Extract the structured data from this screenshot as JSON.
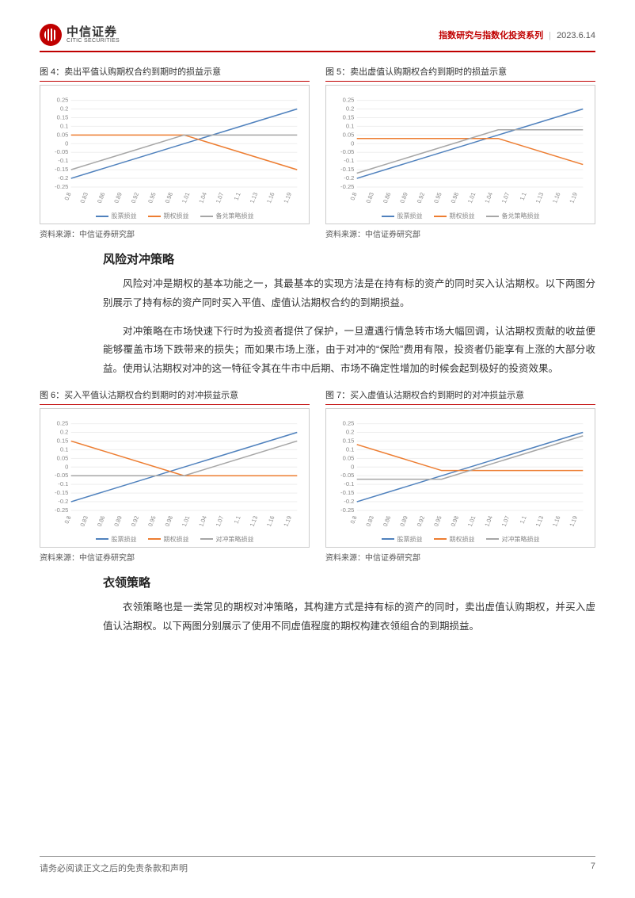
{
  "header": {
    "logo_cn": "中信证券",
    "logo_en": "CITIC SECURITIES",
    "series": "指数研究与指数化投资系列",
    "date": "2023.6.14"
  },
  "charts": {
    "fig4": {
      "title": "图 4：卖出平值认购期权合约到期时的损益示意",
      "source": "资料来源：中信证券研究部",
      "type": "line",
      "xlim": [
        0.8,
        1.2
      ],
      "ylim": [
        -0.25,
        0.28
      ],
      "yticks": [
        -0.25,
        -0.2,
        -0.15,
        -0.1,
        -0.05,
        0,
        0.05,
        0.1,
        0.15,
        0.2,
        0.25
      ],
      "xticks": [
        0.8,
        0.83,
        0.86,
        0.89,
        0.92,
        0.95,
        0.98,
        1.01,
        1.04,
        1.07,
        1.1,
        1.13,
        1.16,
        1.19
      ],
      "background_color": "#ffffff",
      "grid_color": "#eeeeee",
      "series": [
        {
          "name": "股票损益",
          "color": "#4f81bd",
          "points": [
            [
              0.8,
              -0.2
            ],
            [
              1.2,
              0.2
            ]
          ]
        },
        {
          "name": "期权损益",
          "color": "#ed7d31",
          "points": [
            [
              0.8,
              0.05
            ],
            [
              1.0,
              0.05
            ],
            [
              1.2,
              -0.15
            ]
          ]
        },
        {
          "name": "备兑策略损益",
          "color": "#a6a6a6",
          "points": [
            [
              0.8,
              -0.15
            ],
            [
              1.0,
              0.05
            ],
            [
              1.2,
              0.05
            ]
          ]
        }
      ]
    },
    "fig5": {
      "title": "图 5：卖出虚值认购期权合约到期时的损益示意",
      "source": "资料来源：中信证券研究部",
      "type": "line",
      "xlim": [
        0.8,
        1.2
      ],
      "ylim": [
        -0.25,
        0.28
      ],
      "yticks": [
        -0.25,
        -0.2,
        -0.15,
        -0.1,
        -0.05,
        0,
        0.05,
        0.1,
        0.15,
        0.2,
        0.25
      ],
      "xticks": [
        0.8,
        0.83,
        0.86,
        0.89,
        0.92,
        0.95,
        0.98,
        1.01,
        1.04,
        1.07,
        1.1,
        1.13,
        1.16,
        1.19
      ],
      "background_color": "#ffffff",
      "grid_color": "#eeeeee",
      "series": [
        {
          "name": "股票损益",
          "color": "#4f81bd",
          "points": [
            [
              0.8,
              -0.2
            ],
            [
              1.2,
              0.2
            ]
          ]
        },
        {
          "name": "期权损益",
          "color": "#ed7d31",
          "points": [
            [
              0.8,
              0.03
            ],
            [
              1.05,
              0.03
            ],
            [
              1.2,
              -0.12
            ]
          ]
        },
        {
          "name": "备兑策略损益",
          "color": "#a6a6a6",
          "points": [
            [
              0.8,
              -0.17
            ],
            [
              1.05,
              0.08
            ],
            [
              1.2,
              0.08
            ]
          ]
        }
      ]
    },
    "fig6": {
      "title": "图 6：买入平值认沽期权合约到期时的对冲损益示意",
      "source": "资料来源：中信证券研究部",
      "type": "line",
      "xlim": [
        0.8,
        1.2
      ],
      "ylim": [
        -0.25,
        0.28
      ],
      "yticks": [
        -0.25,
        -0.2,
        -0.15,
        -0.1,
        -0.05,
        0,
        0.05,
        0.1,
        0.15,
        0.2,
        0.25
      ],
      "xticks": [
        0.8,
        0.83,
        0.86,
        0.89,
        0.92,
        0.95,
        0.98,
        1.01,
        1.04,
        1.07,
        1.1,
        1.13,
        1.16,
        1.19
      ],
      "background_color": "#ffffff",
      "grid_color": "#eeeeee",
      "series": [
        {
          "name": "股票损益",
          "color": "#4f81bd",
          "points": [
            [
              0.8,
              -0.2
            ],
            [
              1.2,
              0.2
            ]
          ]
        },
        {
          "name": "期权损益",
          "color": "#ed7d31",
          "points": [
            [
              0.8,
              0.15
            ],
            [
              1.0,
              -0.05
            ],
            [
              1.2,
              -0.05
            ]
          ]
        },
        {
          "name": "对冲策略损益",
          "color": "#a6a6a6",
          "points": [
            [
              0.8,
              -0.05
            ],
            [
              1.0,
              -0.05
            ],
            [
              1.2,
              0.15
            ]
          ]
        }
      ]
    },
    "fig7": {
      "title": "图 7：买入虚值认沽期权合约到期时的对冲损益示意",
      "source": "资料来源：中信证券研究部",
      "type": "line",
      "xlim": [
        0.8,
        1.2
      ],
      "ylim": [
        -0.25,
        0.28
      ],
      "yticks": [
        -0.25,
        -0.2,
        -0.15,
        -0.1,
        -0.05,
        0,
        0.05,
        0.1,
        0.15,
        0.2,
        0.25
      ],
      "xticks": [
        0.8,
        0.83,
        0.86,
        0.89,
        0.92,
        0.95,
        0.98,
        1.01,
        1.04,
        1.07,
        1.1,
        1.13,
        1.16,
        1.19
      ],
      "background_color": "#ffffff",
      "grid_color": "#eeeeee",
      "series": [
        {
          "name": "股票损益",
          "color": "#4f81bd",
          "points": [
            [
              0.8,
              -0.2
            ],
            [
              1.2,
              0.2
            ]
          ]
        },
        {
          "name": "期权损益",
          "color": "#ed7d31",
          "points": [
            [
              0.8,
              0.13
            ],
            [
              0.95,
              -0.02
            ],
            [
              1.2,
              -0.02
            ]
          ]
        },
        {
          "name": "对冲策略损益",
          "color": "#a6a6a6",
          "points": [
            [
              0.8,
              -0.07
            ],
            [
              0.95,
              -0.07
            ],
            [
              1.2,
              0.18
            ]
          ]
        }
      ]
    }
  },
  "sections": {
    "risk_hedge": {
      "title": "风险对冲策略",
      "p1": "风险对冲是期权的基本功能之一，其最基本的实现方法是在持有标的资产的同时买入认沽期权。以下两图分别展示了持有标的资产同时买入平值、虚值认沽期权合约的到期损益。",
      "p2": "对冲策略在市场快速下行时为投资者提供了保护，一旦遭遇行情急转市场大幅回调，认沽期权贡献的收益便能够覆盖市场下跌带来的损失；而如果市场上涨，由于对冲的“保险”费用有限，投资者仍能享有上涨的大部分收益。使用认沽期权对冲的这一特征令其在牛市中后期、市场不确定性增加的时候会起到极好的投资效果。"
    },
    "collar": {
      "title": "衣领策略",
      "p1": "衣领策略也是一类常见的期权对冲策略，其构建方式是持有标的资产的同时，卖出虚值认购期权，并买入虚值认沽期权。以下两图分别展示了使用不同虚值程度的期权构建衣领组合的到期损益。"
    }
  },
  "footer": {
    "disclaimer": "请务必阅读正文之后的免责条款和声明",
    "page": "7"
  }
}
